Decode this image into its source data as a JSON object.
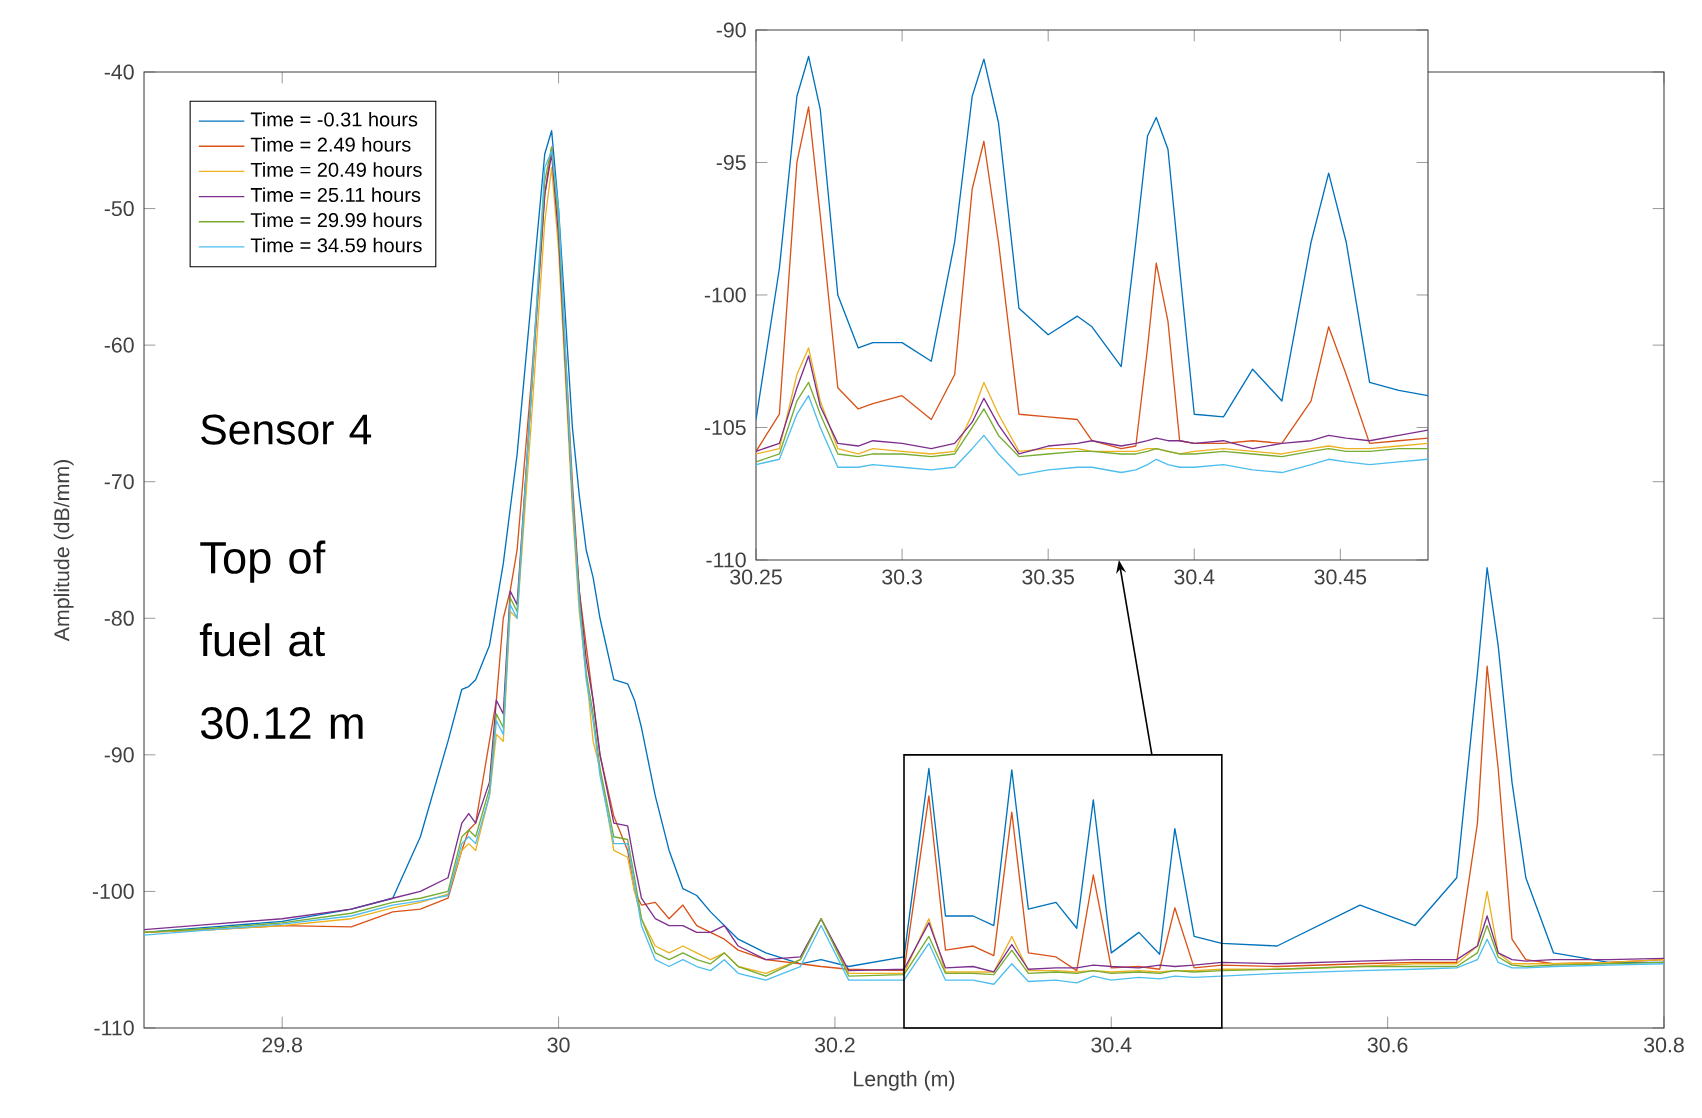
{
  "chart_data": [
    {
      "type": "line",
      "xlabel": "Length (m)",
      "ylabel": "Amplitude (dB/mm)",
      "xlim": [
        29.7,
        30.8
      ],
      "ylim": [
        -110,
        -40
      ],
      "xticks": [
        29.8,
        30,
        30.2,
        30.4,
        30.6,
        30.8
      ],
      "yticks": [
        -110,
        -100,
        -90,
        -80,
        -70,
        -60,
        -50,
        -40
      ],
      "legend": "top left",
      "line_style": "solid",
      "annotations": [
        "Sensor 4",
        "Top of fuel at 30.12 m"
      ],
      "x": [
        29.7,
        29.75,
        29.8,
        29.85,
        29.88,
        29.9,
        29.92,
        29.93,
        29.935,
        29.94,
        29.95,
        29.955,
        29.96,
        29.965,
        29.97,
        29.98,
        29.99,
        29.995,
        30.0,
        30.01,
        30.015,
        30.02,
        30.025,
        30.03,
        30.04,
        30.05,
        30.055,
        30.06,
        30.07,
        30.08,
        30.09,
        30.1,
        30.11,
        30.12,
        30.13,
        30.15,
        30.175,
        30.19,
        30.21,
        30.25,
        30.268,
        30.28,
        30.3,
        30.315,
        30.328,
        30.34,
        30.36,
        30.375,
        30.387,
        30.4,
        30.42,
        30.435,
        30.446,
        30.46,
        30.48,
        30.52,
        30.58,
        30.62,
        30.65,
        30.665,
        30.672,
        30.68,
        30.69,
        30.7,
        30.72,
        30.76,
        30.8
      ],
      "series": [
        {
          "name": "Time = -0.31 hours",
          "color": "#0072bd",
          "values": [
            -103,
            -102.6,
            -102.2,
            -101.3,
            -100.5,
            -96,
            -89,
            -85.2,
            -85,
            -84.5,
            -82,
            -79,
            -76,
            -72,
            -68,
            -57,
            -46,
            -44.3,
            -50,
            -66,
            -71,
            -75,
            -77,
            -80,
            -84.5,
            -84.8,
            -86,
            -88,
            -93,
            -97,
            -99.8,
            -100.3,
            -101.5,
            -102.5,
            -103.5,
            -104.5,
            -105.3,
            -105,
            -105.5,
            -104.8,
            -91,
            -101.8,
            -101.8,
            -102.5,
            -91.1,
            -101.3,
            -100.8,
            -102.7,
            -93.3,
            -104.5,
            -103,
            -104.6,
            -95.4,
            -103.3,
            -103.8,
            -104,
            -101,
            -102.5,
            -99,
            -84,
            -76.3,
            -82,
            -92,
            -99,
            -104.5,
            -105.2,
            -105.2
          ]
        },
        {
          "name": "Time = 2.49 hours",
          "color": "#d95319",
          "values": [
            -103,
            -102.8,
            -102.5,
            -102.6,
            -101.5,
            -101.3,
            -100.5,
            -97,
            -95.5,
            -95,
            -89,
            -86,
            -80,
            -78,
            -75,
            -63,
            -49,
            -45.5,
            -51,
            -70,
            -78,
            -82,
            -86,
            -90,
            -94.5,
            -97,
            -100,
            -101,
            -100.8,
            -102,
            -101,
            -102.5,
            -103,
            -103.5,
            -104.3,
            -105,
            -105.3,
            -105.5,
            -105.7,
            -105.8,
            -93,
            -104.3,
            -104,
            -104.7,
            -94.2,
            -104.5,
            -104.8,
            -105.8,
            -98.8,
            -105.6,
            -105.5,
            -105.7,
            -101.2,
            -105.6,
            -105.4,
            -105.5,
            -105.3,
            -105.2,
            -105.2,
            -95,
            -83.5,
            -91,
            -103.5,
            -105,
            -105.3,
            -105.2,
            -105
          ]
        },
        {
          "name": "Time = 20.49 hours",
          "color": "#edb120",
          "values": [
            -103,
            -102.8,
            -102.5,
            -102,
            -101.2,
            -100.8,
            -100.2,
            -97,
            -96.5,
            -97,
            -93,
            -88.5,
            -89,
            -79.5,
            -80,
            -66,
            -51,
            -47,
            -53,
            -72,
            -79.5,
            -84,
            -89,
            -91,
            -97,
            -97.5,
            -100,
            -102,
            -104,
            -104.5,
            -104,
            -104.5,
            -105,
            -104.5,
            -105.5,
            -106,
            -105,
            -102,
            -106,
            -106,
            -102,
            -105.9,
            -105.9,
            -105.9,
            -103.3,
            -105.8,
            -105.8,
            -105.9,
            -105.8,
            -105.9,
            -105.8,
            -105.9,
            -105.8,
            -105.8,
            -105.7,
            -105.7,
            -105.5,
            -105.3,
            -105.3,
            -104,
            -100,
            -104.5,
            -105.3,
            -105.3,
            -105.3,
            -105.2,
            -105
          ]
        },
        {
          "name": "Time = 25.11 hours",
          "color": "#7e2f8e",
          "values": [
            -102.8,
            -102.4,
            -102,
            -101.3,
            -100.5,
            -100,
            -99,
            -95,
            -94.3,
            -95,
            -92,
            -86,
            -87,
            -78,
            -79,
            -64,
            -49,
            -46,
            -52,
            -71,
            -78,
            -83,
            -86,
            -90,
            -95,
            -95.2,
            -98,
            -100.5,
            -102,
            -102.5,
            -102.5,
            -103,
            -103,
            -102.5,
            -104,
            -105,
            -104.8,
            -102,
            -105.8,
            -105.7,
            -102.3,
            -105.6,
            -105.5,
            -105.9,
            -103.9,
            -105.7,
            -105.6,
            -105.6,
            -105.4,
            -105.5,
            -105.6,
            -105.4,
            -105.5,
            -105.4,
            -105.2,
            -105.3,
            -105.1,
            -105,
            -105,
            -104,
            -101.8,
            -104.5,
            -105,
            -105.1,
            -105,
            -105,
            -104.9
          ]
        },
        {
          "name": "Time = 29.99 hours",
          "color": "#77ac30",
          "values": [
            -103,
            -102.7,
            -102.3,
            -101.6,
            -100.8,
            -100.5,
            -100,
            -96,
            -95.5,
            -96,
            -92.5,
            -87,
            -88,
            -78.5,
            -79.5,
            -64,
            -48,
            -45.5,
            -51,
            -71,
            -78.5,
            -84,
            -87,
            -91,
            -96,
            -96.2,
            -99,
            -102,
            -104.5,
            -105,
            -104.5,
            -105,
            -105.3,
            -104.5,
            -105.5,
            -106.2,
            -105,
            -102,
            -106.2,
            -106.1,
            -103.3,
            -106,
            -106,
            -106.1,
            -104.3,
            -106,
            -105.9,
            -106,
            -105.8,
            -106,
            -105.9,
            -106,
            -105.8,
            -105.9,
            -105.8,
            -105.7,
            -105.5,
            -105.5,
            -105.5,
            -104.5,
            -102.5,
            -104.8,
            -105.4,
            -105.5,
            -105.4,
            -105.3,
            -105.2
          ]
        },
        {
          "name": "Time = 34.59 hours",
          "color": "#4dbeee",
          "values": [
            -103.2,
            -102.8,
            -102.4,
            -101.8,
            -101,
            -100.7,
            -100.3,
            -96.5,
            -96,
            -96.5,
            -93,
            -87.5,
            -88.5,
            -79,
            -80,
            -64,
            -47,
            -45.8,
            -50,
            -71,
            -79,
            -84.5,
            -87.5,
            -91.5,
            -96.5,
            -96.5,
            -99.5,
            -102.5,
            -105,
            -105.5,
            -105,
            -105.5,
            -105.8,
            -105,
            -106,
            -106.5,
            -105.5,
            -102.5,
            -106.5,
            -106.5,
            -103.8,
            -106.5,
            -106.5,
            -106.8,
            -105.3,
            -106.6,
            -106.5,
            -106.7,
            -106.2,
            -106.5,
            -106.3,
            -106.4,
            -106.2,
            -106.3,
            -106.2,
            -106,
            -105.8,
            -105.7,
            -105.6,
            -105,
            -103.5,
            -105.2,
            -105.6,
            -105.6,
            -105.5,
            -105.4,
            -105.3
          ]
        }
      ]
    },
    {
      "type": "line",
      "xlim": [
        30.25,
        30.48
      ],
      "ylim": [
        -110,
        -90
      ],
      "xticks": [
        30.25,
        30.3,
        30.35,
        30.4,
        30.45
      ],
      "yticks": [
        -110,
        -105,
        -100,
        -95,
        -90
      ],
      "line_style": "solid",
      "x": [
        30.25,
        30.258,
        30.264,
        30.268,
        30.272,
        30.278,
        30.285,
        30.29,
        30.3,
        30.31,
        30.318,
        30.324,
        30.328,
        30.333,
        30.34,
        30.35,
        30.36,
        30.365,
        30.375,
        30.38,
        30.384,
        30.387,
        30.391,
        30.395,
        30.4,
        30.41,
        30.42,
        30.43,
        30.44,
        30.446,
        30.452,
        30.46,
        30.47,
        30.48
      ],
      "series": [
        {
          "color": "#0072bd",
          "values": [
            -104.7,
            -99,
            -92.5,
            -91,
            -93,
            -100,
            -102,
            -101.8,
            -101.8,
            -102.5,
            -98,
            -92.5,
            -91.1,
            -93.5,
            -100.5,
            -101.5,
            -100.8,
            -101.2,
            -102.7,
            -98,
            -94,
            -93.3,
            -94.5,
            -99,
            -104.5,
            -104.6,
            -102.8,
            -104,
            -98,
            -95.4,
            -98,
            -103.3,
            -103.6,
            -103.8
          ]
        },
        {
          "color": "#d95319",
          "values": [
            -105.9,
            -104.5,
            -95,
            -92.9,
            -97,
            -103.5,
            -104.3,
            -104.1,
            -103.8,
            -104.7,
            -103,
            -96,
            -94.2,
            -98,
            -104.5,
            -104.6,
            -104.7,
            -105.5,
            -105.8,
            -105.7,
            -102,
            -98.8,
            -101,
            -105.5,
            -105.6,
            -105.6,
            -105.5,
            -105.6,
            -104,
            -101.2,
            -103,
            -105.6,
            -105.5,
            -105.4
          ]
        },
        {
          "color": "#edb120",
          "values": [
            -106,
            -105.8,
            -103,
            -102,
            -104,
            -105.8,
            -106,
            -105.8,
            -105.9,
            -106,
            -105.9,
            -104.5,
            -103.3,
            -104.5,
            -105.9,
            -105.8,
            -105.8,
            -105.9,
            -105.9,
            -105.9,
            -105.8,
            -105.8,
            -105.9,
            -106,
            -105.9,
            -105.8,
            -105.9,
            -106,
            -105.8,
            -105.7,
            -105.8,
            -105.8,
            -105.7,
            -105.6
          ]
        },
        {
          "color": "#7e2f8e",
          "values": [
            -105.9,
            -105.6,
            -103.5,
            -102.3,
            -104.2,
            -105.6,
            -105.7,
            -105.5,
            -105.6,
            -105.8,
            -105.6,
            -104.8,
            -103.9,
            -104.9,
            -106,
            -105.7,
            -105.6,
            -105.5,
            -105.7,
            -105.6,
            -105.5,
            -105.4,
            -105.5,
            -105.5,
            -105.6,
            -105.5,
            -105.8,
            -105.6,
            -105.5,
            -105.3,
            -105.4,
            -105.5,
            -105.3,
            -105.1
          ]
        },
        {
          "color": "#77ac30",
          "values": [
            -106.3,
            -106,
            -104,
            -103.3,
            -104.5,
            -106,
            -106.1,
            -106,
            -106,
            -106.1,
            -106,
            -105,
            -104.3,
            -105.3,
            -106.1,
            -106,
            -105.9,
            -105.9,
            -106,
            -106,
            -105.9,
            -105.8,
            -105.9,
            -106,
            -106,
            -105.9,
            -106,
            -106.1,
            -105.9,
            -105.8,
            -105.9,
            -105.9,
            -105.8,
            -105.8
          ]
        },
        {
          "color": "#4dbeee",
          "values": [
            -106.4,
            -106.2,
            -104.5,
            -103.8,
            -105,
            -106.5,
            -106.5,
            -106.4,
            -106.5,
            -106.6,
            -106.5,
            -105.8,
            -105.3,
            -106,
            -106.8,
            -106.6,
            -106.5,
            -106.5,
            -106.7,
            -106.6,
            -106.4,
            -106.2,
            -106.4,
            -106.5,
            -106.5,
            -106.4,
            -106.6,
            -106.7,
            -106.4,
            -106.2,
            -106.3,
            -106.4,
            -106.3,
            -106.2
          ]
        }
      ]
    }
  ]
}
